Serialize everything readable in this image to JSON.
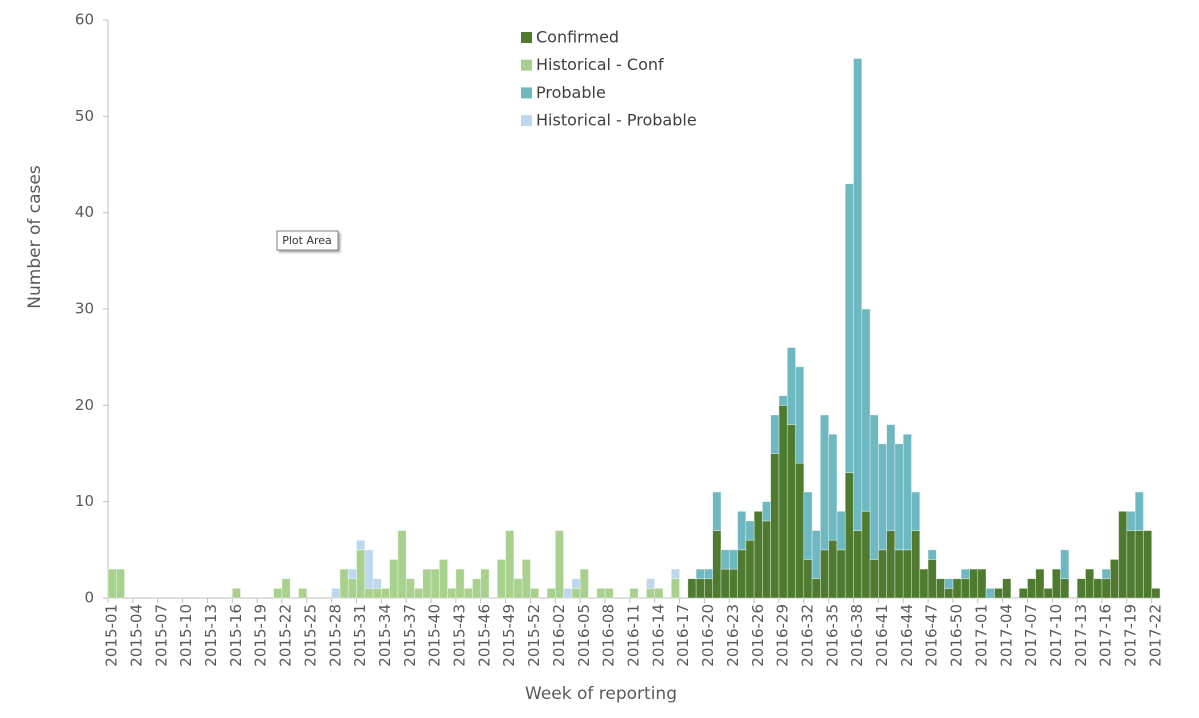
{
  "chart_data": {
    "type": "stacked-bar",
    "x_label": "Week of reporting",
    "y_label": "Number of cases",
    "annotation": "Plot Area",
    "ylim": [
      0,
      60
    ],
    "yticks": [
      0,
      10,
      20,
      30,
      40,
      50,
      60
    ],
    "legend": "top-center",
    "categories": [
      "2015-01",
      null,
      null,
      "2015-04",
      null,
      null,
      "2015-07",
      null,
      null,
      "2015-10",
      null,
      null,
      "2015-13",
      null,
      null,
      "2015-16",
      null,
      null,
      "2015-19",
      null,
      null,
      "2015-22",
      null,
      null,
      "2015-25",
      null,
      null,
      "2015-28",
      null,
      null,
      "2015-31",
      null,
      null,
      "2015-34",
      null,
      null,
      "2015-37",
      null,
      null,
      "2015-40",
      null,
      null,
      "2015-43",
      null,
      null,
      "2015-46",
      null,
      null,
      "2015-49",
      null,
      null,
      "2015-52",
      null,
      null,
      "2016-02",
      null,
      null,
      "2016-05",
      null,
      null,
      "2016-08",
      null,
      null,
      "2016-11",
      null,
      null,
      "2016-14",
      null,
      null,
      "2016-17",
      null,
      null,
      "2016-20",
      null,
      null,
      "2016-23",
      null,
      null,
      "2016-26",
      null,
      null,
      "2016-29",
      null,
      null,
      "2016-32",
      null,
      null,
      "2016-35",
      null,
      null,
      "2016-38",
      null,
      null,
      "2016-41",
      null,
      null,
      "2016-44",
      null,
      null,
      "2016-47",
      null,
      null,
      "2016-50",
      null,
      null,
      "2017-01",
      null,
      null,
      "2017-04",
      null,
      null,
      "2017-07",
      null,
      null,
      "2017-10",
      null,
      null,
      "2017-13",
      null,
      null,
      "2017-16",
      null,
      null,
      "2017-19",
      null,
      null,
      "2017-22"
    ],
    "series": [
      {
        "name": "Confirmed",
        "color": "#4e7b2f",
        "values": [
          0,
          0,
          0,
          0,
          0,
          0,
          0,
          0,
          0,
          0,
          0,
          0,
          0,
          0,
          0,
          0,
          0,
          0,
          0,
          0,
          0,
          0,
          0,
          0,
          0,
          0,
          0,
          0,
          0,
          0,
          0,
          0,
          0,
          0,
          0,
          0,
          0,
          0,
          0,
          0,
          0,
          0,
          0,
          0,
          0,
          0,
          0,
          0,
          0,
          0,
          0,
          0,
          0,
          0,
          0,
          0,
          0,
          0,
          0,
          0,
          0,
          0,
          0,
          0,
          0,
          0,
          0,
          0,
          0,
          0,
          2,
          2,
          2,
          7,
          3,
          3,
          5,
          6,
          9,
          8,
          15,
          20,
          18,
          14,
          4,
          2,
          5,
          6,
          5,
          13,
          7,
          9,
          4,
          5,
          7,
          5,
          5,
          7,
          3,
          4,
          2,
          1,
          2,
          2,
          3,
          3,
          0,
          1,
          2,
          0,
          1,
          2,
          3,
          1,
          3,
          2,
          0,
          2,
          3,
          2,
          2,
          4,
          9,
          7,
          7,
          7,
          1
        ]
      },
      {
        "name": "Historical - Conf",
        "color": "#a9d18e",
        "values": [
          3,
          3,
          0,
          0,
          0,
          0,
          0,
          0,
          0,
          0,
          0,
          0,
          0,
          0,
          0,
          1,
          0,
          0,
          0,
          0,
          1,
          2,
          0,
          1,
          0,
          0,
          0,
          0,
          3,
          2,
          5,
          1,
          1,
          1,
          4,
          7,
          2,
          1,
          3,
          3,
          4,
          1,
          3,
          1,
          2,
          3,
          0,
          4,
          7,
          2,
          4,
          1,
          0,
          1,
          7,
          0,
          1,
          3,
          0,
          1,
          1,
          0,
          0,
          1,
          0,
          1,
          1,
          0,
          2,
          0,
          0,
          0,
          0,
          0,
          0,
          0,
          0,
          0,
          0,
          0,
          0,
          0,
          0,
          0,
          0,
          0,
          0,
          0,
          0,
          0,
          0,
          0,
          0,
          0,
          0,
          0,
          0,
          0,
          0,
          0,
          0,
          0,
          0,
          0,
          0,
          0,
          0,
          0,
          0,
          0,
          0,
          0,
          0,
          0,
          0,
          0,
          0,
          0,
          0,
          0,
          0,
          0,
          0,
          0,
          0,
          0,
          0
        ]
      },
      {
        "name": "Probable",
        "color": "#6db8c1",
        "values": [
          0,
          0,
          0,
          0,
          0,
          0,
          0,
          0,
          0,
          0,
          0,
          0,
          0,
          0,
          0,
          0,
          0,
          0,
          0,
          0,
          0,
          0,
          0,
          0,
          0,
          0,
          0,
          0,
          0,
          0,
          0,
          0,
          0,
          0,
          0,
          0,
          0,
          0,
          0,
          0,
          0,
          0,
          0,
          0,
          0,
          0,
          0,
          0,
          0,
          0,
          0,
          0,
          0,
          0,
          0,
          0,
          0,
          0,
          0,
          0,
          0,
          0,
          0,
          0,
          0,
          0,
          0,
          0,
          0,
          0,
          0,
          1,
          1,
          4,
          2,
          2,
          4,
          2,
          0,
          2,
          4,
          1,
          8,
          10,
          7,
          5,
          14,
          11,
          4,
          30,
          49,
          21,
          15,
          11,
          11,
          11,
          12,
          4,
          0,
          1,
          0,
          1,
          0,
          1,
          0,
          0,
          1,
          0,
          0,
          0,
          0,
          0,
          0,
          0,
          0,
          3,
          0,
          0,
          0,
          0,
          1,
          0,
          0,
          2,
          4,
          0,
          0
        ]
      },
      {
        "name": "Historical - Probable",
        "color": "#bdd7ee",
        "values": [
          0,
          0,
          0,
          0,
          0,
          0,
          0,
          0,
          0,
          0,
          0,
          0,
          0,
          0,
          0,
          0,
          0,
          0,
          0,
          0,
          0,
          0,
          0,
          0,
          0,
          0,
          0,
          1,
          0,
          1,
          1,
          4,
          1,
          0,
          0,
          0,
          0,
          0,
          0,
          0,
          0,
          0,
          0,
          0,
          0,
          0,
          0,
          0,
          0,
          0,
          0,
          0,
          0,
          0,
          0,
          1,
          1,
          0,
          0,
          0,
          0,
          0,
          0,
          0,
          0,
          1,
          0,
          0,
          1,
          0,
          0,
          0,
          0,
          0,
          0,
          0,
          0,
          0,
          0,
          0,
          0,
          0,
          0,
          0,
          0,
          0,
          0,
          0,
          0,
          0,
          0,
          0,
          0,
          0,
          0,
          0,
          0,
          0,
          0,
          0,
          0,
          0,
          0,
          0,
          0,
          0,
          0,
          0,
          0,
          0,
          0,
          0,
          0,
          0,
          0,
          0,
          0,
          0,
          0,
          0,
          0,
          0,
          0,
          0,
          0,
          0,
          0
        ]
      }
    ]
  }
}
